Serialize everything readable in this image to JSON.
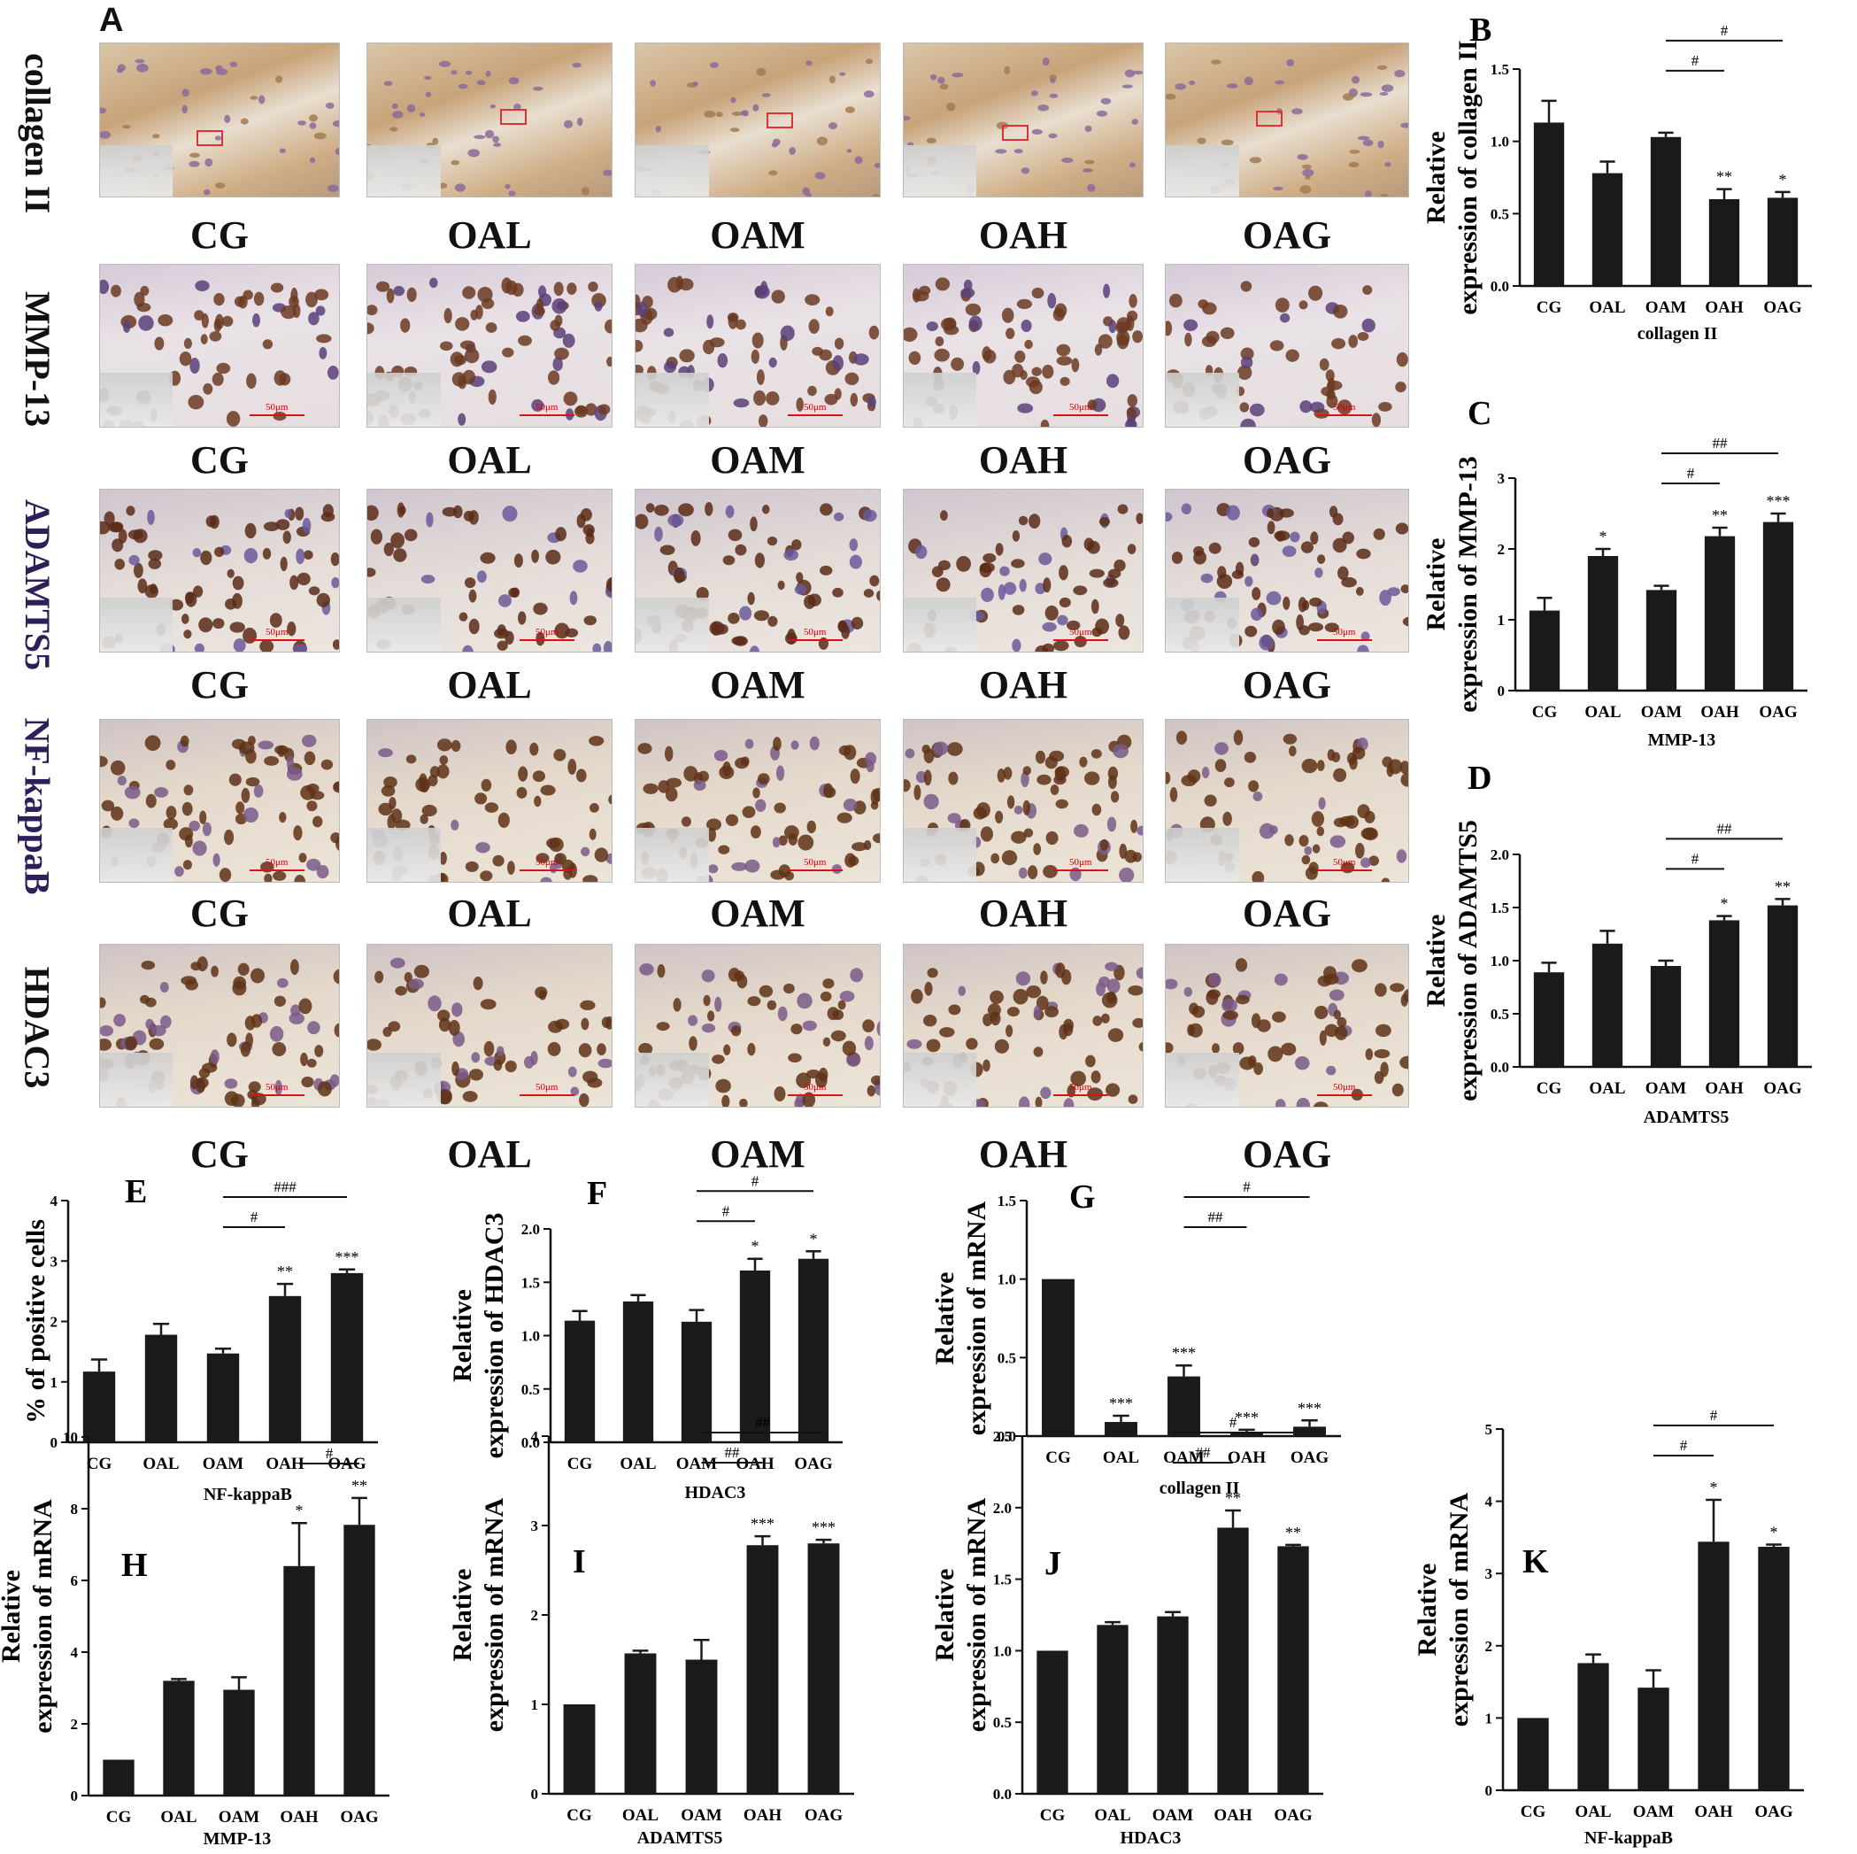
{
  "panel_a": {
    "letter": "A",
    "rows": [
      {
        "label": "collagen II",
        "color": "#111111",
        "style": "collagen",
        "groups": [
          "CG",
          "OAL",
          "OAM",
          "OAH",
          "OAG"
        ]
      },
      {
        "label": "MMP-13",
        "color": "#111111",
        "style": "purple-light",
        "groups": [
          "CG",
          "OAL",
          "OAM",
          "OAH",
          "OAG"
        ],
        "scale_label": "50μm"
      },
      {
        "label": "ADAMTS5",
        "color": "#2e1f5a",
        "style": "mixed",
        "groups": [
          "CG",
          "OAL",
          "OAM",
          "OAH",
          "OAG"
        ],
        "scale_label": "50μm"
      },
      {
        "label": "NF-kappaB",
        "color": "#2e1f5a",
        "style": "brown-light",
        "groups": [
          "CG",
          "OAL",
          "OAM",
          "OAH",
          "OAG"
        ],
        "scale_label": "50μm"
      },
      {
        "label": "HDAC3",
        "color": "#111111",
        "style": "brown-light",
        "groups": [
          "CG",
          "OAL",
          "OAM",
          "OAH",
          "OAG"
        ],
        "scale_label": "50μm"
      }
    ]
  },
  "chart_data": [
    {
      "id": "B",
      "letter": "B",
      "type": "bar",
      "categories": [
        "CG",
        "OAL",
        "OAM",
        "OAH",
        "OAG"
      ],
      "values": [
        1.13,
        0.78,
        1.03,
        0.6,
        0.61
      ],
      "errors": [
        0.15,
        0.08,
        0.03,
        0.07,
        0.04
      ],
      "sig": [
        "",
        "",
        "",
        "**",
        "*"
      ],
      "brackets": [
        {
          "from": 2,
          "to": 3,
          "label": "#"
        },
        {
          "from": 2,
          "to": 4,
          "label": "#"
        }
      ],
      "ylim": [
        0,
        1.5
      ],
      "yticks": [
        "0.0",
        "0.5",
        "1.0",
        "1.5"
      ],
      "ylabel_lines": [
        "Relative",
        "expression of collagen II"
      ],
      "xlabel": "collagen II"
    },
    {
      "id": "C",
      "letter": "C",
      "type": "bar",
      "categories": [
        "CG",
        "OAL",
        "OAM",
        "OAH",
        "OAG"
      ],
      "values": [
        1.13,
        1.9,
        1.42,
        2.18,
        2.38
      ],
      "errors": [
        0.18,
        0.1,
        0.06,
        0.12,
        0.12
      ],
      "sig": [
        "",
        "*",
        "",
        "**",
        "***"
      ],
      "brackets": [
        {
          "from": 2,
          "to": 3,
          "label": "#"
        },
        {
          "from": 2,
          "to": 4,
          "label": "##"
        }
      ],
      "ylim": [
        0,
        3
      ],
      "yticks": [
        "0",
        "1",
        "2",
        "3"
      ],
      "ylabel_lines": [
        "Relative",
        "expression of MMP-13"
      ],
      "xlabel": "MMP-13"
    },
    {
      "id": "D",
      "letter": "D",
      "type": "bar",
      "categories": [
        "CG",
        "OAL",
        "OAM",
        "OAH",
        "OAG"
      ],
      "values": [
        0.89,
        1.16,
        0.95,
        1.38,
        1.52
      ],
      "errors": [
        0.09,
        0.12,
        0.05,
        0.04,
        0.06
      ],
      "sig": [
        "",
        "",
        "",
        "*",
        "**"
      ],
      "brackets": [
        {
          "from": 2,
          "to": 3,
          "label": "#"
        },
        {
          "from": 2,
          "to": 4,
          "label": "##"
        }
      ],
      "ylim": [
        0,
        2.0
      ],
      "yticks": [
        "0.0",
        "0.5",
        "1.0",
        "1.5",
        "2.0"
      ],
      "ylabel_lines": [
        "Relative",
        "expression of ADAMTS5"
      ],
      "xlabel": "ADAMTS5"
    },
    {
      "id": "E",
      "letter": "E",
      "type": "bar",
      "categories": [
        "CG",
        "OAL",
        "OAM",
        "OAH",
        "OAG"
      ],
      "values": [
        1.17,
        1.78,
        1.47,
        2.42,
        2.8
      ],
      "errors": [
        0.2,
        0.18,
        0.08,
        0.2,
        0.06
      ],
      "sig": [
        "",
        "",
        "",
        "**",
        "***"
      ],
      "brackets": [
        {
          "from": 2,
          "to": 3,
          "label": "#"
        },
        {
          "from": 2,
          "to": 4,
          "label": "###"
        }
      ],
      "ylim": [
        0,
        4
      ],
      "yticks": [
        "0",
        "1",
        "2",
        "3",
        "4"
      ],
      "ylabel_lines": [
        "% of positive cells"
      ],
      "xlabel": "NF-kappaB"
    },
    {
      "id": "F",
      "letter": "F",
      "type": "bar",
      "categories": [
        "CG",
        "OAL",
        "OAM",
        "OAH",
        "OAG"
      ],
      "values": [
        1.14,
        1.32,
        1.13,
        1.61,
        1.72
      ],
      "errors": [
        0.09,
        0.06,
        0.11,
        0.11,
        0.07
      ],
      "sig": [
        "",
        "",
        "",
        "*",
        "*"
      ],
      "brackets": [
        {
          "from": 2,
          "to": 3,
          "label": "#"
        },
        {
          "from": 2,
          "to": 4,
          "label": "#"
        }
      ],
      "ylim": [
        0,
        2.0
      ],
      "yticks": [
        "0.0",
        "0.5",
        "1.0",
        "1.5",
        "2.0"
      ],
      "ylabel_lines": [
        "Relative",
        "expression of HDAC3"
      ],
      "xlabel": "HDAC3"
    },
    {
      "id": "G",
      "letter": "G",
      "type": "bar",
      "categories": [
        "CG",
        "OAL",
        "OAM",
        "OAH",
        "OAG"
      ],
      "values": [
        1.0,
        0.09,
        0.38,
        0.02,
        0.06
      ],
      "errors": [
        0,
        0.04,
        0.07,
        0.02,
        0.04
      ],
      "sig": [
        "",
        "***",
        "***",
        "***",
        "***"
      ],
      "brackets": [
        {
          "from": 2,
          "to": 3,
          "label": "##"
        },
        {
          "from": 2,
          "to": 4,
          "label": "#"
        }
      ],
      "ylim": [
        0,
        1.5
      ],
      "yticks": [
        "0.0",
        "0.5",
        "1.0",
        "1.5"
      ],
      "ylabel_lines": [
        "Relative",
        "expression of  mRNA"
      ],
      "xlabel": "collagen II"
    },
    {
      "id": "H",
      "letter": "H",
      "type": "bar",
      "categories": [
        "CG",
        "OAL",
        "OAM",
        "OAH",
        "OAG"
      ],
      "values": [
        1.0,
        3.2,
        2.95,
        6.4,
        7.55
      ],
      "errors": [
        0,
        0.05,
        0.35,
        1.2,
        0.75
      ],
      "sig": [
        "",
        "",
        "",
        "*",
        "**"
      ],
      "brackets": [
        {
          "from": 3,
          "to": 4,
          "label": "#"
        }
      ],
      "ylim": [
        0,
        10
      ],
      "yticks": [
        "0",
        "2",
        "4",
        "6",
        "8",
        "10"
      ],
      "ylabel_lines": [
        "Relative",
        "expression of  mRNA"
      ],
      "xlabel": "MMP-13"
    },
    {
      "id": "I",
      "letter": "I",
      "type": "bar",
      "categories": [
        "CG",
        "OAL",
        "OAM",
        "OAH",
        "OAG"
      ],
      "values": [
        1.0,
        1.57,
        1.5,
        2.78,
        2.8
      ],
      "errors": [
        0,
        0.03,
        0.22,
        0.1,
        0.04
      ],
      "sig": [
        "",
        "",
        "",
        "***",
        "***"
      ],
      "brackets": [
        {
          "from": 2,
          "to": 3,
          "label": "##"
        },
        {
          "from": 2,
          "to": 4,
          "label": "##"
        }
      ],
      "ylim": [
        0,
        4
      ],
      "yticks": [
        "0",
        "1",
        "2",
        "3",
        "4"
      ],
      "ylabel_lines": [
        "Relative",
        "expression of  mRNA"
      ],
      "xlabel": "ADAMTS5"
    },
    {
      "id": "J",
      "letter": "J",
      "type": "bar",
      "categories": [
        "CG",
        "OAL",
        "OAM",
        "OAH",
        "OAG"
      ],
      "values": [
        1.0,
        1.18,
        1.24,
        1.86,
        1.73
      ],
      "errors": [
        0,
        0.02,
        0.03,
        0.12,
        0.01
      ],
      "sig": [
        "",
        "",
        "",
        "**",
        "**"
      ],
      "brackets": [
        {
          "from": 2,
          "to": 3,
          "label": "##"
        },
        {
          "from": 2,
          "to": 4,
          "label": "#"
        }
      ],
      "ylim": [
        0,
        2.5
      ],
      "yticks": [
        "0.0",
        "0.5",
        "1.0",
        "1.5",
        "2.0",
        "2.5"
      ],
      "ylabel_lines": [
        "Relative",
        "expression of  mRNA"
      ],
      "xlabel": "HDAC3"
    },
    {
      "id": "K",
      "letter": "K",
      "type": "bar",
      "categories": [
        "CG",
        "OAL",
        "OAM",
        "OAH",
        "OAG"
      ],
      "values": [
        1.0,
        1.76,
        1.42,
        3.44,
        3.37
      ],
      "errors": [
        0,
        0.12,
        0.24,
        0.58,
        0.03
      ],
      "sig": [
        "",
        "",
        "",
        "*",
        "*"
      ],
      "brackets": [
        {
          "from": 2,
          "to": 3,
          "label": "#"
        },
        {
          "from": 2,
          "to": 4,
          "label": "#"
        }
      ],
      "ylim": [
        0,
        5
      ],
      "yticks": [
        "0",
        "1",
        "2",
        "3",
        "4",
        "5"
      ],
      "ylabel_lines": [
        "Relative",
        "expression of mRNA"
      ],
      "xlabel": "NF-kappaB"
    }
  ]
}
